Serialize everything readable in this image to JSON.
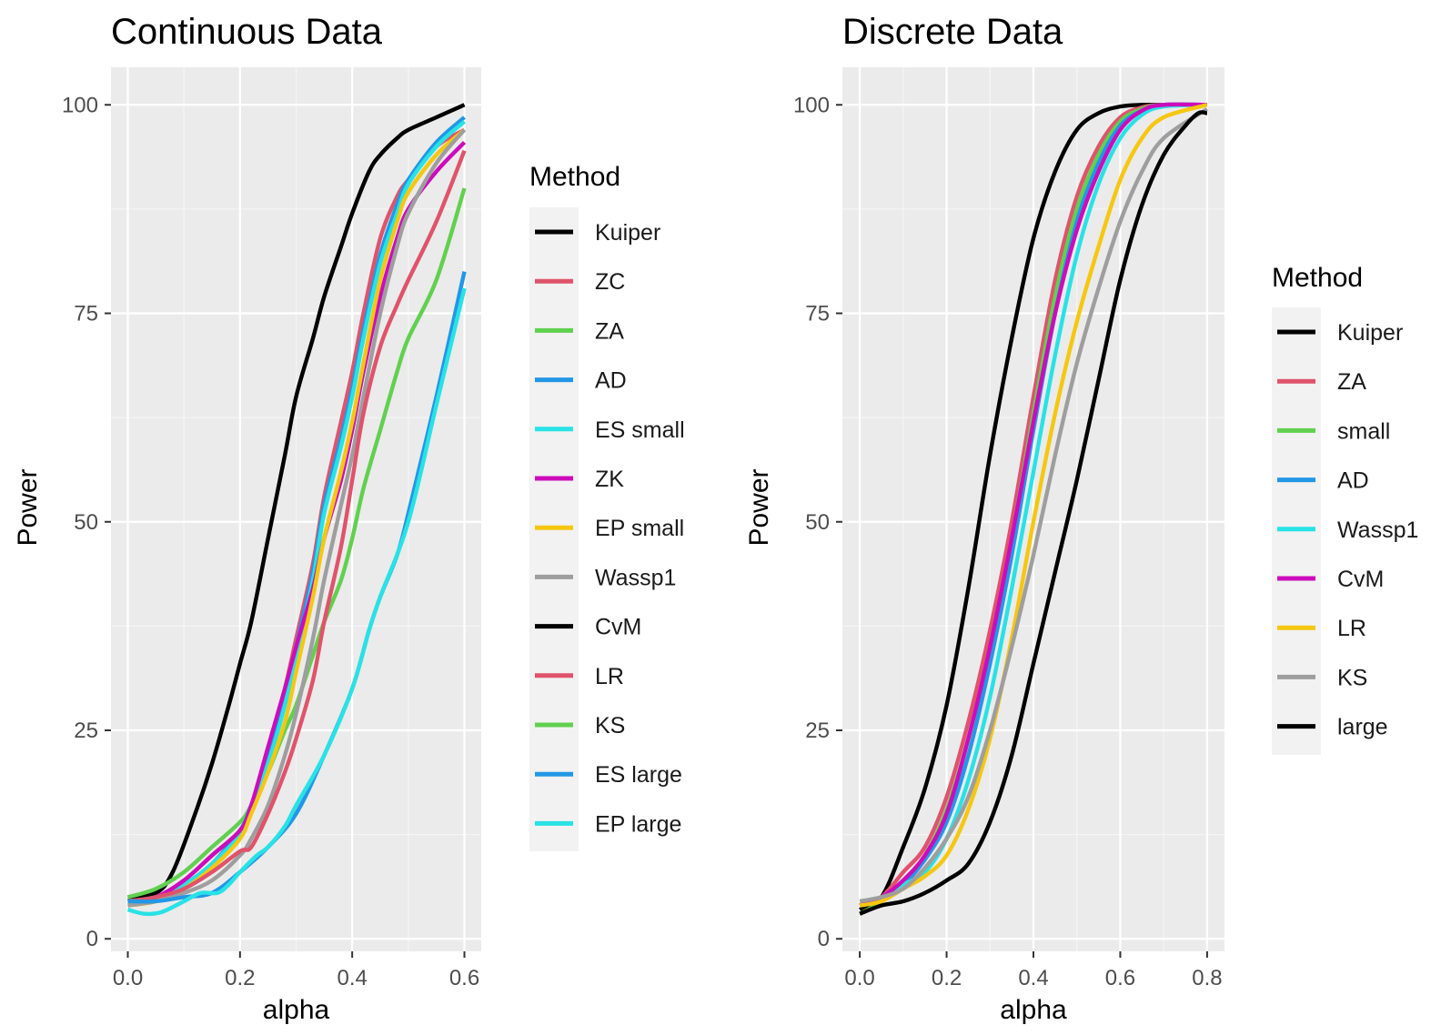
{
  "colors": {
    "panel_bg": "#EBEBEB",
    "grid_major": "#FFFFFF",
    "grid_minor": "#F5F5F5",
    "tick": "#333333",
    "legend_bg": "#F2F2F2"
  },
  "chart_data": [
    {
      "type": "line",
      "title": "Continuous Data",
      "xlabel": "alpha",
      "ylabel": "Power",
      "xlim": [
        -0.03,
        0.63
      ],
      "ylim": [
        -1.5,
        104.5
      ],
      "xticks": [
        0.0,
        0.2,
        0.4,
        0.6
      ],
      "xtick_labels": [
        "0.0",
        "0.2",
        "0.4",
        "0.6"
      ],
      "yticks": [
        0,
        25,
        50,
        75,
        100
      ],
      "ytick_labels": [
        "0",
        "25",
        "50",
        "75",
        "100"
      ],
      "legend_title": "Method",
      "series": [
        {
          "name": "Kuiper",
          "color": "#000000",
          "x": [
            0,
            0.05,
            0.08,
            0.12,
            0.15,
            0.18,
            0.2,
            0.22,
            0.25,
            0.28,
            0.3,
            0.33,
            0.35,
            0.38,
            0.4,
            0.43,
            0.45,
            0.48,
            0.5,
            0.55,
            0.6
          ],
          "y": [
            5,
            5.5,
            8,
            15,
            21,
            28,
            33,
            38,
            48,
            58,
            65,
            72,
            77,
            83,
            87,
            92,
            94,
            96,
            97,
            98.5,
            100
          ]
        },
        {
          "name": "ZC",
          "color": "#DF536B",
          "x": [
            0,
            0.05,
            0.1,
            0.15,
            0.2,
            0.22,
            0.25,
            0.28,
            0.3,
            0.33,
            0.35,
            0.38,
            0.4,
            0.42,
            0.45,
            0.48,
            0.5,
            0.55,
            0.6
          ],
          "y": [
            4.5,
            5,
            7,
            10,
            13,
            16,
            22,
            30,
            36,
            45,
            53,
            62,
            68,
            75,
            84,
            89,
            91,
            95,
            97
          ]
        },
        {
          "name": "ZA",
          "color": "#61D04F",
          "x": [
            0,
            0.05,
            0.1,
            0.15,
            0.2,
            0.22,
            0.25,
            0.28,
            0.3,
            0.33,
            0.35,
            0.38,
            0.4,
            0.42,
            0.45,
            0.48,
            0.5,
            0.55,
            0.6
          ],
          "y": [
            5,
            6,
            8,
            11,
            14,
            16,
            20,
            25,
            28,
            34,
            38,
            43,
            48,
            54,
            61,
            68,
            72,
            79,
            90
          ]
        },
        {
          "name": "AD",
          "color": "#2297E6",
          "x": [
            0,
            0.05,
            0.1,
            0.15,
            0.2,
            0.22,
            0.25,
            0.28,
            0.3,
            0.33,
            0.35,
            0.38,
            0.4,
            0.42,
            0.45,
            0.48,
            0.5,
            0.55,
            0.6
          ],
          "y": [
            4.5,
            5,
            6.5,
            9,
            13,
            16,
            22,
            29,
            35,
            44,
            52,
            60,
            66,
            73,
            82,
            88,
            91,
            95.5,
            98.5
          ]
        },
        {
          "name": "ES small",
          "color": "#28E2E5",
          "x": [
            0,
            0.05,
            0.1,
            0.15,
            0.2,
            0.22,
            0.25,
            0.28,
            0.3,
            0.33,
            0.35,
            0.38,
            0.4,
            0.42,
            0.45,
            0.48,
            0.5,
            0.55,
            0.6
          ],
          "y": [
            4.5,
            5,
            6.5,
            9,
            12.5,
            15.5,
            21,
            28,
            34,
            43,
            51,
            59,
            65,
            72,
            81,
            87,
            90.5,
            95,
            98
          ]
        },
        {
          "name": "ZK",
          "color": "#CD0BBC",
          "x": [
            0,
            0.05,
            0.1,
            0.15,
            0.2,
            0.22,
            0.25,
            0.28,
            0.3,
            0.33,
            0.35,
            0.38,
            0.4,
            0.42,
            0.45,
            0.48,
            0.5,
            0.55,
            0.6
          ],
          "y": [
            4.5,
            5,
            7,
            10,
            13,
            16,
            23,
            30,
            35,
            42,
            48,
            55,
            61,
            68,
            77,
            84,
            87.5,
            92,
            95.5
          ]
        },
        {
          "name": "EP small",
          "color": "#F5C710",
          "x": [
            0,
            0.05,
            0.1,
            0.15,
            0.2,
            0.22,
            0.25,
            0.28,
            0.3,
            0.33,
            0.35,
            0.38,
            0.4,
            0.42,
            0.45,
            0.48,
            0.5,
            0.55,
            0.6
          ],
          "y": [
            4,
            4.5,
            6,
            8.5,
            12,
            15,
            20,
            26,
            32,
            41,
            48,
            56,
            62,
            69,
            79,
            86,
            89.5,
            94,
            97
          ]
        },
        {
          "name": "Wassp1",
          "color": "#9E9E9E",
          "x": [
            0,
            0.05,
            0.1,
            0.15,
            0.2,
            0.22,
            0.25,
            0.28,
            0.3,
            0.33,
            0.35,
            0.38,
            0.4,
            0.42,
            0.45,
            0.48,
            0.5,
            0.55,
            0.6
          ],
          "y": [
            4,
            4.5,
            5.5,
            7,
            10,
            12,
            16,
            22,
            27,
            36,
            43,
            52,
            58,
            65,
            75,
            83,
            87,
            93,
            97
          ]
        },
        {
          "name": "CvM",
          "color": "#000000",
          "x": [],
          "y": []
        },
        {
          "name": "LR",
          "color": "#DF536B",
          "x": [
            0,
            0.05,
            0.1,
            0.15,
            0.2,
            0.22,
            0.25,
            0.28,
            0.3,
            0.33,
            0.35,
            0.38,
            0.4,
            0.42,
            0.45,
            0.48,
            0.5,
            0.55,
            0.6
          ],
          "y": [
            4.5,
            5,
            6,
            8,
            10.5,
            11,
            15,
            20,
            24,
            31,
            38,
            47,
            55,
            63,
            71,
            76,
            79,
            86,
            94.5
          ]
        },
        {
          "name": "KS",
          "color": "#61D04F",
          "x": [],
          "y": []
        },
        {
          "name": "ES large",
          "color": "#2297E6",
          "x": [
            0,
            0.05,
            0.1,
            0.15,
            0.2,
            0.25,
            0.3,
            0.35,
            0.4,
            0.43,
            0.45,
            0.48,
            0.5,
            0.55,
            0.6
          ],
          "y": [
            4.5,
            4.5,
            5,
            5.5,
            8,
            11,
            15,
            22,
            30,
            37,
            41,
            46,
            51,
            65,
            80
          ]
        },
        {
          "name": "EP large",
          "color": "#28E2E5",
          "x": [
            0,
            0.03,
            0.06,
            0.1,
            0.13,
            0.16,
            0.18,
            0.2,
            0.23,
            0.25,
            0.28,
            0.3,
            0.35,
            0.4,
            0.43,
            0.45,
            0.5,
            0.55,
            0.6
          ],
          "y": [
            3.5,
            3,
            3.2,
            4.5,
            5.5,
            5.5,
            6.5,
            8,
            10,
            11,
            13.5,
            16,
            22,
            30,
            37,
            41,
            50,
            64,
            78
          ]
        }
      ]
    },
    {
      "type": "line",
      "title": "Discrete Data",
      "xlabel": "alpha",
      "ylabel": "Power",
      "xlim": [
        -0.04,
        0.84
      ],
      "ylim": [
        -1.5,
        104.5
      ],
      "xticks": [
        0.0,
        0.2,
        0.4,
        0.6,
        0.8
      ],
      "xtick_labels": [
        "0.0",
        "0.2",
        "0.4",
        "0.6",
        "0.8"
      ],
      "yticks": [
        0,
        25,
        50,
        75,
        100
      ],
      "ytick_labels": [
        "0",
        "25",
        "50",
        "75",
        "100"
      ],
      "legend_title": "Method",
      "series": [
        {
          "name": "Kuiper",
          "color": "#000000",
          "x": [
            0,
            0.05,
            0.1,
            0.15,
            0.2,
            0.25,
            0.3,
            0.35,
            0.4,
            0.45,
            0.5,
            0.55,
            0.6,
            0.65,
            0.7,
            0.8
          ],
          "y": [
            3.5,
            5,
            11,
            18,
            28,
            42,
            58,
            72,
            84,
            92,
            97,
            99,
            99.8,
            100,
            100,
            100
          ]
        },
        {
          "name": "ZA",
          "color": "#DF536B",
          "x": [
            0,
            0.05,
            0.1,
            0.15,
            0.2,
            0.25,
            0.3,
            0.35,
            0.4,
            0.45,
            0.5,
            0.55,
            0.6,
            0.65,
            0.7,
            0.8
          ],
          "y": [
            4,
            5,
            8,
            11,
            17,
            26,
            37,
            50,
            65,
            79,
            89,
            95,
            98.5,
            99.7,
            100,
            100
          ]
        },
        {
          "name": "small",
          "color": "#61D04F",
          "x": [
            0,
            0.05,
            0.1,
            0.15,
            0.2,
            0.25,
            0.3,
            0.35,
            0.4,
            0.45,
            0.5,
            0.55,
            0.6,
            0.65,
            0.7,
            0.8
          ],
          "y": [
            3,
            4.5,
            7,
            10,
            15.5,
            24,
            35,
            48,
            63,
            77,
            87.5,
            94,
            98,
            99.5,
            100,
            100
          ]
        },
        {
          "name": "AD",
          "color": "#2297E6",
          "x": [
            0,
            0.05,
            0.1,
            0.15,
            0.2,
            0.25,
            0.3,
            0.35,
            0.4,
            0.45,
            0.5,
            0.55,
            0.6,
            0.65,
            0.7,
            0.8
          ],
          "y": [
            4,
            5,
            6.5,
            9.5,
            14,
            22,
            33,
            46,
            61,
            75,
            86,
            93,
            97.5,
            99.3,
            100,
            100
          ]
        },
        {
          "name": "Wassp1",
          "color": "#28E2E5",
          "x": [
            0,
            0.05,
            0.1,
            0.15,
            0.2,
            0.25,
            0.3,
            0.35,
            0.4,
            0.45,
            0.5,
            0.55,
            0.6,
            0.65,
            0.7,
            0.8
          ],
          "y": [
            4,
            5,
            6.5,
            8,
            12,
            19,
            29,
            42,
            56,
            70,
            82,
            90.5,
            96,
            98.8,
            99.8,
            100
          ]
        },
        {
          "name": "CvM",
          "color": "#CD0BBC",
          "x": [
            0,
            0.05,
            0.1,
            0.15,
            0.2,
            0.25,
            0.3,
            0.35,
            0.4,
            0.45,
            0.5,
            0.55,
            0.6,
            0.65,
            0.7,
            0.8
          ],
          "y": [
            4,
            5,
            7,
            10,
            15,
            24,
            35,
            48,
            62,
            75,
            85,
            92,
            97,
            99.3,
            100,
            100
          ]
        },
        {
          "name": "LR",
          "color": "#F5C710",
          "x": [
            0,
            0.05,
            0.1,
            0.15,
            0.2,
            0.25,
            0.3,
            0.35,
            0.4,
            0.45,
            0.5,
            0.55,
            0.6,
            0.65,
            0.7,
            0.8
          ],
          "y": [
            4,
            4.5,
            6,
            7.5,
            10,
            15.5,
            24,
            36,
            50,
            63,
            74,
            83,
            91,
            96,
            98.5,
            100
          ]
        },
        {
          "name": "KS",
          "color": "#9E9E9E",
          "x": [
            0,
            0.05,
            0.1,
            0.15,
            0.2,
            0.25,
            0.3,
            0.35,
            0.4,
            0.45,
            0.5,
            0.55,
            0.6,
            0.65,
            0.7,
            0.8
          ],
          "y": [
            4.5,
            5,
            6,
            8.5,
            12,
            17,
            25,
            35,
            46,
            58,
            69,
            78,
            86,
            92,
            96,
            99.5
          ]
        },
        {
          "name": "large",
          "color": "#000000",
          "x": [
            0,
            0.05,
            0.1,
            0.15,
            0.2,
            0.25,
            0.3,
            0.35,
            0.4,
            0.45,
            0.5,
            0.55,
            0.6,
            0.65,
            0.7,
            0.75,
            0.78,
            0.8
          ],
          "y": [
            3,
            4,
            4.5,
            5.5,
            7,
            9,
            14,
            22,
            33,
            44,
            55,
            67,
            79,
            88,
            94,
            97.5,
            99,
            99
          ]
        }
      ]
    }
  ]
}
